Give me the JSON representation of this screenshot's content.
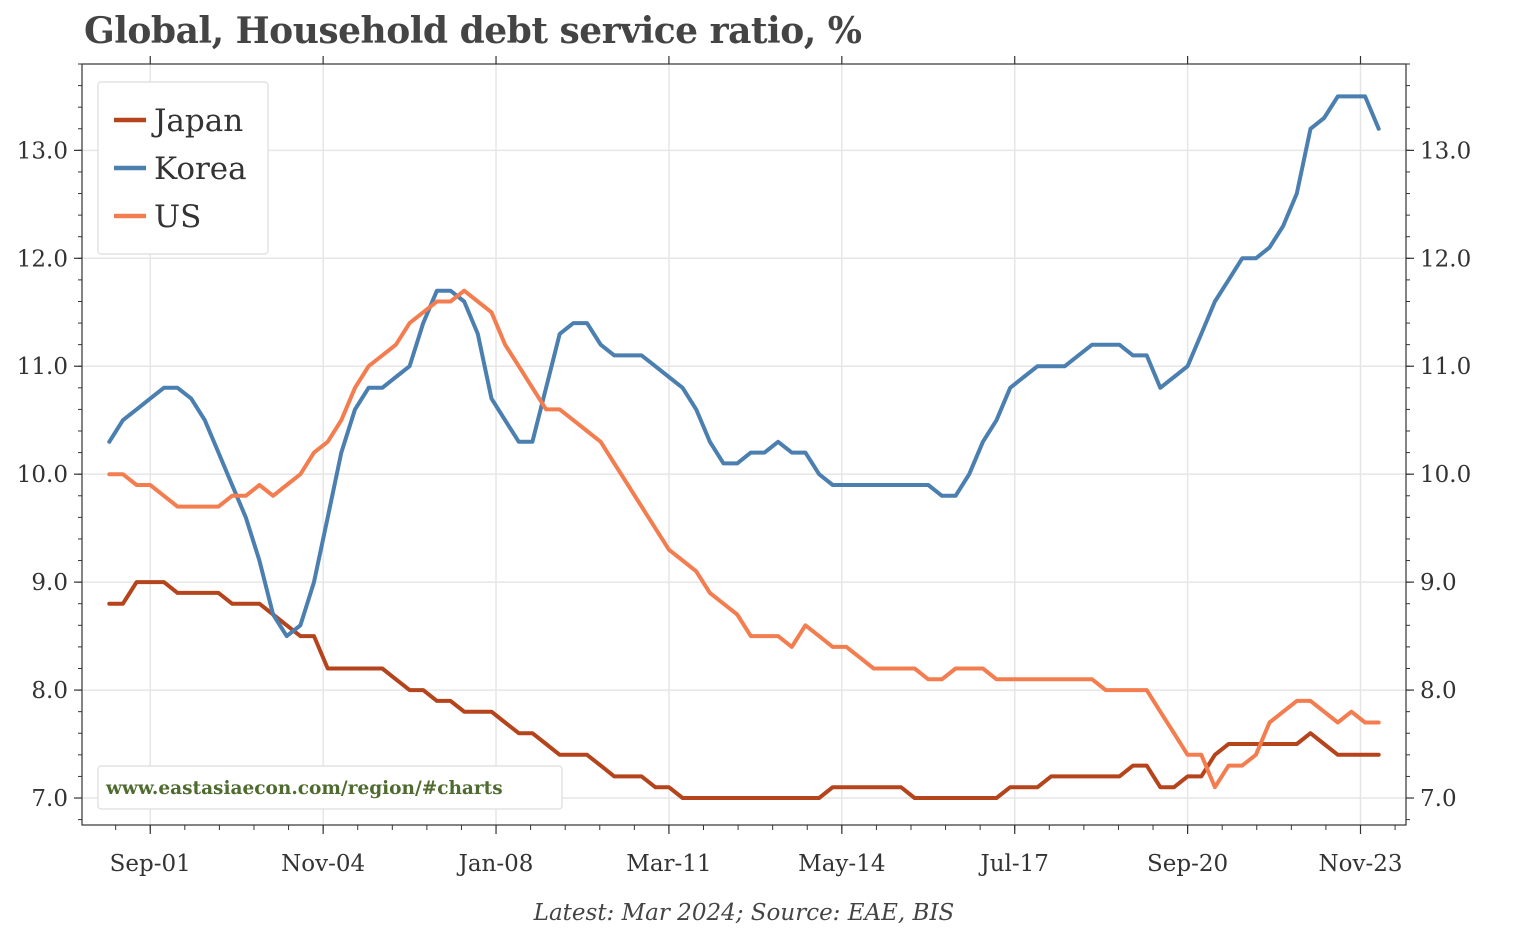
{
  "title": "Global, Household debt service ratio, %",
  "chart_data": {
    "type": "line",
    "title": "Global, Household debt service ratio, %",
    "xlabel": "",
    "ylabel": "",
    "x_range": [
      "2000-06",
      "2024-09"
    ],
    "ylim": [
      6.75,
      13.8
    ],
    "y_ticks": [
      7.0,
      8.0,
      9.0,
      10.0,
      11.0,
      12.0,
      13.0
    ],
    "y_tick_labels": [
      "7.0",
      "8.0",
      "9.0",
      "10.0",
      "11.0",
      "12.0",
      "13.0"
    ],
    "x_ticks": [
      "2001-09",
      "2004-11",
      "2008-01",
      "2011-03",
      "2014-05",
      "2017-07",
      "2020-09",
      "2023-11"
    ],
    "x_tick_labels": [
      "Sep-01",
      "Nov-04",
      "Jan-08",
      "Mar-11",
      "May-14",
      "Jul-17",
      "Sep-20",
      "Nov-23"
    ],
    "grid": true,
    "legend_position": "top-left",
    "annotations": {
      "watermark": "www.eastasiaecon.com/region/#charts",
      "source": "Latest: Mar 2024; Source: EAE, BIS"
    },
    "x": [
      "2000-12",
      "2001-03",
      "2001-06",
      "2001-09",
      "2001-12",
      "2002-03",
      "2002-06",
      "2002-09",
      "2002-12",
      "2003-03",
      "2003-06",
      "2003-09",
      "2003-12",
      "2004-03",
      "2004-06",
      "2004-09",
      "2004-12",
      "2005-03",
      "2005-06",
      "2005-09",
      "2005-12",
      "2006-03",
      "2006-06",
      "2006-09",
      "2006-12",
      "2007-03",
      "2007-06",
      "2007-09",
      "2007-12",
      "2008-03",
      "2008-06",
      "2008-09",
      "2008-12",
      "2009-03",
      "2009-06",
      "2009-09",
      "2009-12",
      "2010-03",
      "2010-06",
      "2010-09",
      "2010-12",
      "2011-03",
      "2011-06",
      "2011-09",
      "2011-12",
      "2012-03",
      "2012-06",
      "2012-09",
      "2012-12",
      "2013-03",
      "2013-06",
      "2013-09",
      "2013-12",
      "2014-03",
      "2014-06",
      "2014-09",
      "2014-12",
      "2015-03",
      "2015-06",
      "2015-09",
      "2015-12",
      "2016-03",
      "2016-06",
      "2016-09",
      "2016-12",
      "2017-03",
      "2017-06",
      "2017-09",
      "2017-12",
      "2018-03",
      "2018-06",
      "2018-09",
      "2018-12",
      "2019-03",
      "2019-06",
      "2019-09",
      "2019-12",
      "2020-03",
      "2020-06",
      "2020-09",
      "2020-12",
      "2021-03",
      "2021-06",
      "2021-09",
      "2021-12",
      "2022-03",
      "2022-06",
      "2022-09",
      "2022-12",
      "2023-03",
      "2023-06",
      "2023-09",
      "2023-12",
      "2024-03"
    ],
    "series": [
      {
        "name": "Japan",
        "color": "#b5441c",
        "values": [
          8.8,
          8.8,
          9.0,
          9.0,
          9.0,
          8.9,
          8.9,
          8.9,
          8.9,
          8.8,
          8.8,
          8.8,
          8.7,
          8.6,
          8.5,
          8.5,
          8.2,
          8.2,
          8.2,
          8.2,
          8.2,
          8.1,
          8.0,
          8.0,
          7.9,
          7.9,
          7.8,
          7.8,
          7.8,
          7.7,
          7.6,
          7.6,
          7.5,
          7.4,
          7.4,
          7.4,
          7.3,
          7.2,
          7.2,
          7.2,
          7.1,
          7.1,
          7.0,
          7.0,
          7.0,
          7.0,
          7.0,
          7.0,
          7.0,
          7.0,
          7.0,
          7.0,
          7.0,
          7.1,
          7.1,
          7.1,
          7.1,
          7.1,
          7.1,
          7.0,
          7.0,
          7.0,
          7.0,
          7.0,
          7.0,
          7.0,
          7.1,
          7.1,
          7.1,
          7.2,
          7.2,
          7.2,
          7.2,
          7.2,
          7.2,
          7.3,
          7.3,
          7.1,
          7.1,
          7.2,
          7.2,
          7.4,
          7.5,
          7.5,
          7.5,
          7.5,
          7.5,
          7.5,
          7.6,
          7.5,
          7.4,
          7.4,
          7.4,
          7.4
        ]
      },
      {
        "name": "Korea",
        "color": "#4a7fb0",
        "values": [
          10.3,
          10.5,
          10.6,
          10.7,
          10.8,
          10.8,
          10.7,
          10.5,
          10.2,
          9.9,
          9.6,
          9.2,
          8.7,
          8.5,
          8.6,
          9.0,
          9.6,
          10.2,
          10.6,
          10.8,
          10.8,
          10.9,
          11.0,
          11.4,
          11.7,
          11.7,
          11.6,
          11.3,
          10.7,
          10.5,
          10.3,
          10.3,
          10.8,
          11.3,
          11.4,
          11.4,
          11.2,
          11.1,
          11.1,
          11.1,
          11.0,
          10.9,
          10.8,
          10.6,
          10.3,
          10.1,
          10.1,
          10.2,
          10.2,
          10.3,
          10.2,
          10.2,
          10.0,
          9.9,
          9.9,
          9.9,
          9.9,
          9.9,
          9.9,
          9.9,
          9.9,
          9.8,
          9.8,
          10.0,
          10.3,
          10.5,
          10.8,
          10.9,
          11.0,
          11.0,
          11.0,
          11.1,
          11.2,
          11.2,
          11.2,
          11.1,
          11.1,
          10.8,
          10.9,
          11.0,
          11.3,
          11.6,
          11.8,
          12.0,
          12.0,
          12.1,
          12.3,
          12.6,
          13.2,
          13.3,
          13.5,
          13.5,
          13.5,
          13.2
        ]
      },
      {
        "name": "US",
        "color": "#f47d50",
        "values": [
          10.0,
          10.0,
          9.9,
          9.9,
          9.8,
          9.7,
          9.7,
          9.7,
          9.7,
          9.8,
          9.8,
          9.9,
          9.8,
          9.9,
          10.0,
          10.2,
          10.3,
          10.5,
          10.8,
          11.0,
          11.1,
          11.2,
          11.4,
          11.5,
          11.6,
          11.6,
          11.7,
          11.6,
          11.5,
          11.2,
          11.0,
          10.8,
          10.6,
          10.6,
          10.5,
          10.4,
          10.3,
          10.1,
          9.9,
          9.7,
          9.5,
          9.3,
          9.2,
          9.1,
          8.9,
          8.8,
          8.7,
          8.5,
          8.5,
          8.5,
          8.4,
          8.6,
          8.5,
          8.4,
          8.4,
          8.3,
          8.2,
          8.2,
          8.2,
          8.2,
          8.1,
          8.1,
          8.2,
          8.2,
          8.2,
          8.1,
          8.1,
          8.1,
          8.1,
          8.1,
          8.1,
          8.1,
          8.1,
          8.0,
          8.0,
          8.0,
          8.0,
          7.8,
          7.6,
          7.4,
          7.4,
          7.1,
          7.3,
          7.3,
          7.4,
          7.7,
          7.8,
          7.9,
          7.9,
          7.8,
          7.7,
          7.8,
          7.7,
          7.7
        ]
      }
    ]
  }
}
